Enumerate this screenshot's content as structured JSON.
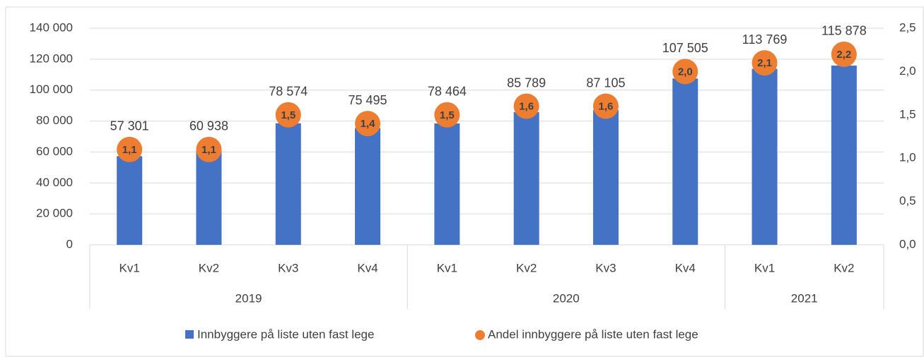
{
  "chart_data": {
    "type": "bar",
    "groups": [
      {
        "label": "2019",
        "categories": [
          "Kv1",
          "Kv2",
          "Kv3",
          "Kv4"
        ]
      },
      {
        "label": "2020",
        "categories": [
          "Kv1",
          "Kv2",
          "Kv3",
          "Kv4"
        ]
      },
      {
        "label": "2021",
        "categories": [
          "Kv1",
          "Kv2"
        ]
      }
    ],
    "series": [
      {
        "name": "Innbyggere på liste uten fast lege",
        "color": "#4472c4",
        "type": "bar",
        "values": [
          57301,
          60938,
          78574,
          75495,
          78464,
          85789,
          87105,
          107505,
          113769,
          115878
        ],
        "value_labels": [
          "57 301",
          "60 938",
          "78 574",
          "75 495",
          "78 464",
          "85 789",
          "87 105",
          "107 505",
          "113 769",
          "115 878"
        ]
      },
      {
        "name": "Andel innbyggere på liste uten fast lege",
        "color": "#ed7d31",
        "type": "scatter",
        "axis": "y2",
        "values": [
          1.1,
          1.1,
          1.5,
          1.4,
          1.5,
          1.6,
          1.6,
          2.0,
          2.1,
          2.2
        ],
        "value_labels": [
          "1,1",
          "1,1",
          "1,5",
          "1,4",
          "1,5",
          "1,6",
          "1,6",
          "2,0",
          "2,1",
          "2,2"
        ]
      }
    ],
    "ylim": [
      0,
      140000
    ],
    "yticks": [
      0,
      {
        "value": 20000,
        "label": "20 000"
      },
      {
        "value": 40000,
        "label": "40 000"
      },
      {
        "value": 60000,
        "label": "60 000"
      },
      {
        "value": 80000,
        "label": "80 000"
      },
      {
        "value": 100000,
        "label": "100 000"
      },
      {
        "value": 120000,
        "label": "120 000"
      },
      {
        "value": 140000,
        "label": "140 000"
      }
    ],
    "y2lim": [
      0,
      2.5
    ],
    "y2ticks": [
      {
        "value": 0,
        "label": "0,0"
      },
      {
        "value": 0.5,
        "label": "0,5"
      },
      {
        "value": 1,
        "label": "1,0"
      },
      {
        "value": 1.5,
        "label": "1,5"
      },
      {
        "value": 2,
        "label": "2,0"
      },
      {
        "value": 2.5,
        "label": "2,5"
      }
    ],
    "grid": true,
    "legend": "bottom"
  }
}
